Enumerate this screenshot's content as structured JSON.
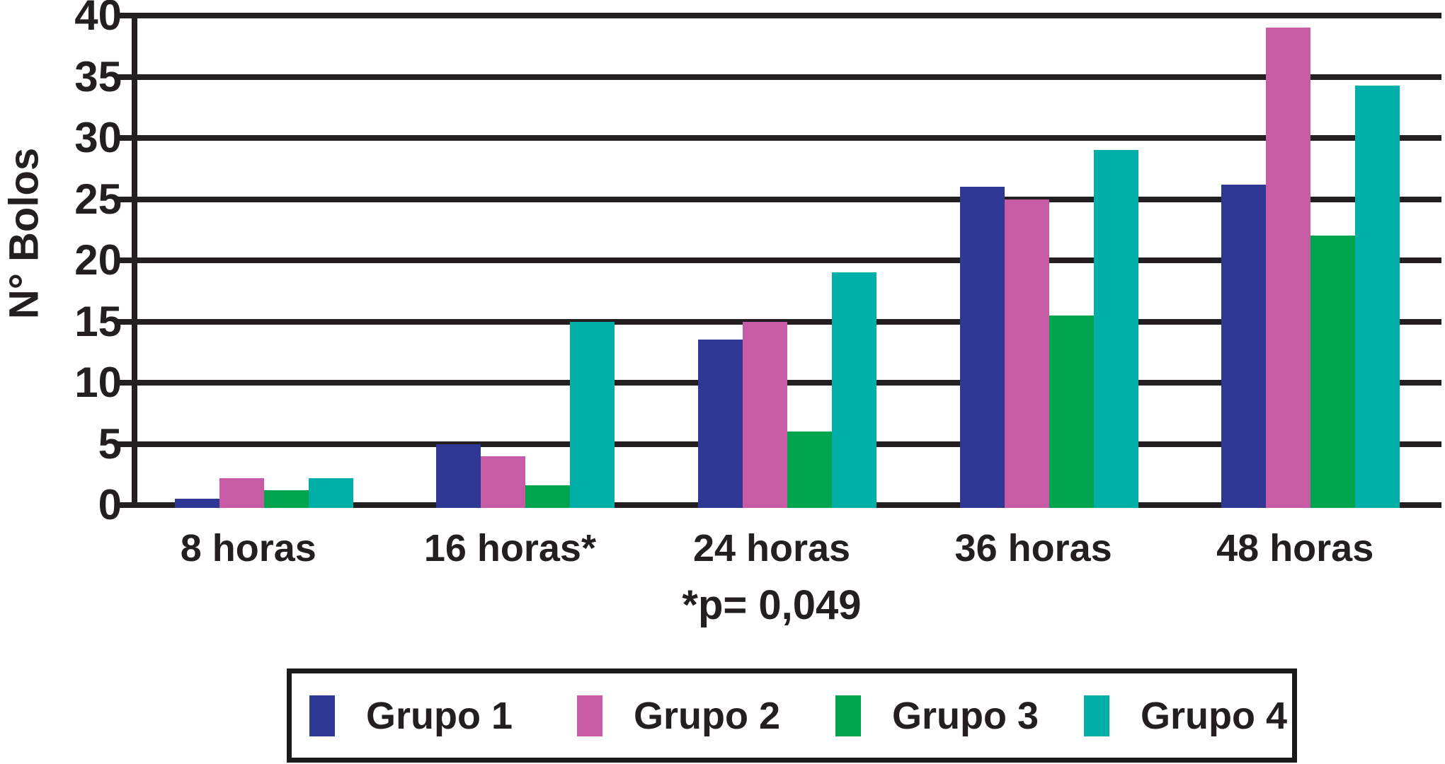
{
  "chart_data": {
    "type": "bar",
    "title": "",
    "ylabel": "N° Bolos",
    "xlabel": "",
    "ylim": [
      0,
      40
    ],
    "ytick_step": 5,
    "yticks": [
      0,
      5,
      10,
      15,
      20,
      25,
      30,
      35,
      40
    ],
    "grid": true,
    "legend_position": "bottom",
    "axis_color": "#231f20",
    "categories": [
      "8 horas",
      "16 horas*",
      "24 horas",
      "36 horas",
      "48 horas"
    ],
    "series": [
      {
        "name": "Grupo 1",
        "color": "#2f3795",
        "values": [
          0.5,
          5,
          13.5,
          26,
          26.2
        ]
      },
      {
        "name": "Grupo 2",
        "color": "#c75ba4",
        "values": [
          2.2,
          4,
          15,
          25,
          39
        ]
      },
      {
        "name": "Grupo 3",
        "color": "#00a44f",
        "values": [
          1.2,
          1.6,
          6,
          15.5,
          22
        ]
      },
      {
        "name": "Grupo 4",
        "color": "#00b0a8",
        "values": [
          2.2,
          15,
          19,
          29,
          34.3
        ]
      }
    ],
    "annotation": "*p= 0,049"
  }
}
